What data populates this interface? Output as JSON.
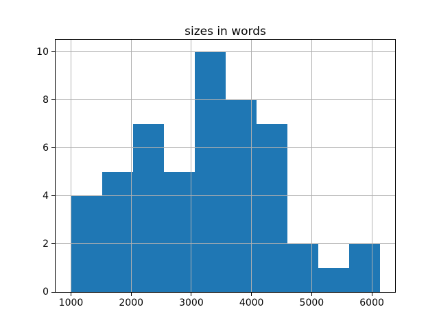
{
  "figure": {
    "background": "#ffffff"
  },
  "chart_data": {
    "type": "bar",
    "subtype": "histogram",
    "title": "sizes in words",
    "xlabel": "",
    "ylabel": "",
    "bin_edges": [
      1000,
      1513,
      2026,
      2539,
      3052,
      3565,
      4078,
      4591,
      5104,
      5617,
      6130
    ],
    "values": [
      4,
      5,
      7,
      5,
      10,
      8,
      7,
      2,
      1,
      2
    ],
    "xlim": [
      743.5,
      6386.5
    ],
    "ylim": [
      0,
      10.5
    ],
    "x_ticks": [
      1000,
      2000,
      3000,
      4000,
      5000,
      6000
    ],
    "y_ticks": [
      0,
      2,
      4,
      6,
      8,
      10
    ],
    "grid": true,
    "legend": false,
    "bar_color": "#1f77b4",
    "grid_color": "#b0b0b0",
    "spine_color": "#000000",
    "text_color": "#000000"
  }
}
